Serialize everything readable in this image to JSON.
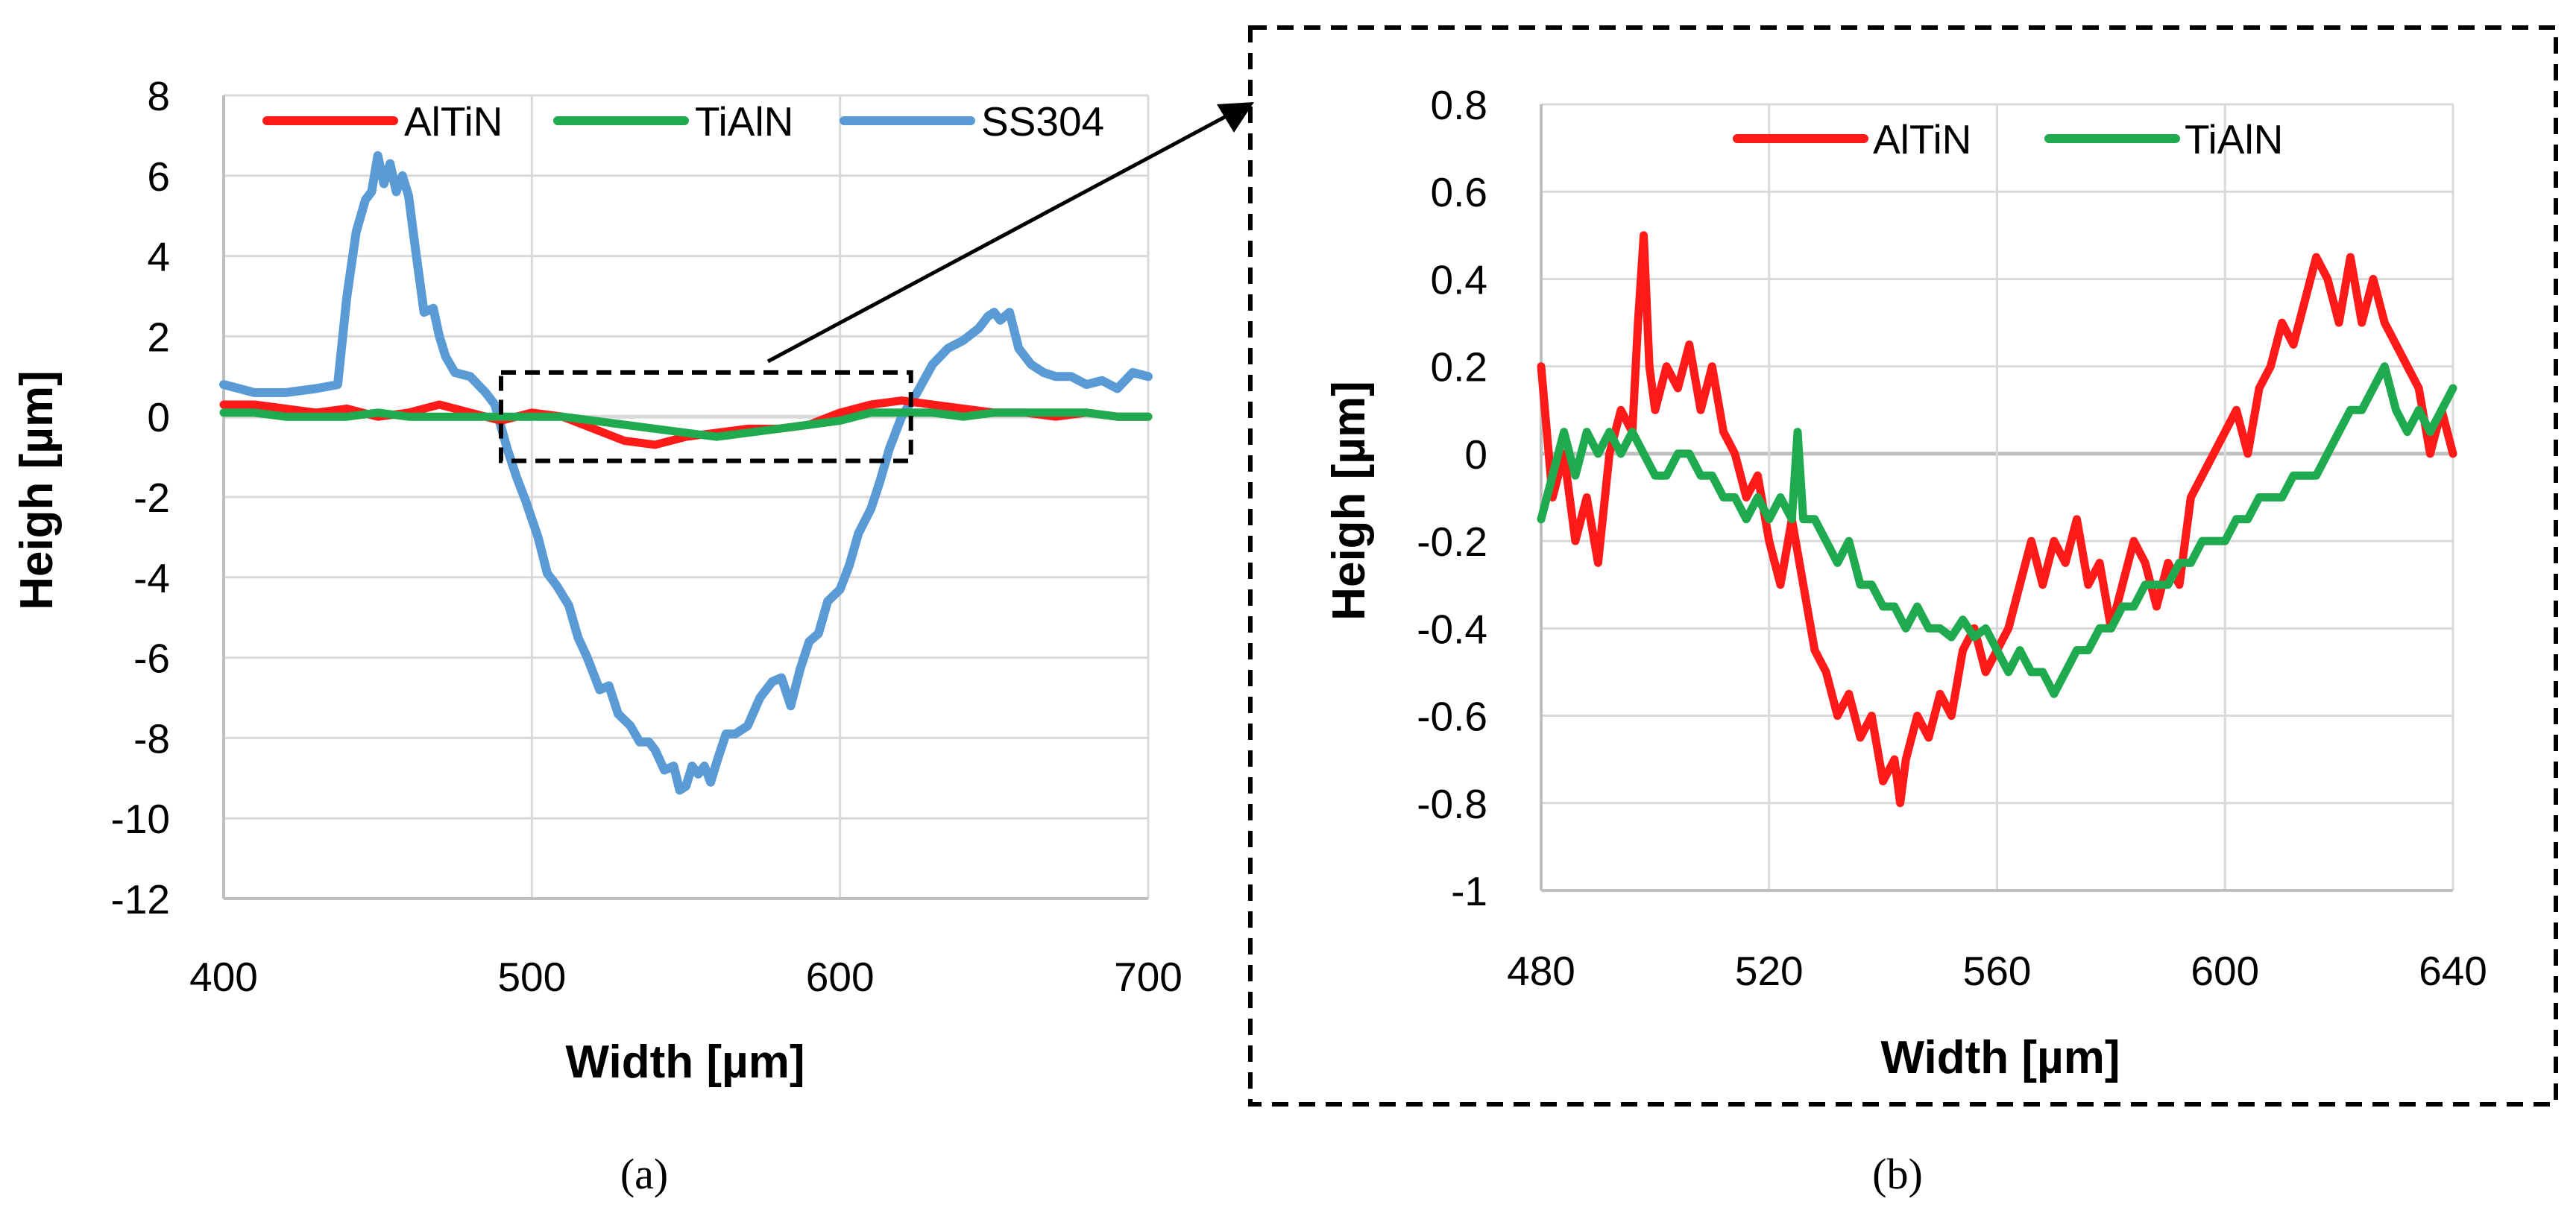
{
  "colors": {
    "AlTiN": "#ff1a1a",
    "TiAlN": "#1faa50",
    "SS304": "#5b9bd5",
    "grid": "#d9d9d9",
    "zero_line": "#bfbfbf",
    "frame": "#000000",
    "background": "#ffffff"
  },
  "chart_data": [
    {
      "id": "a",
      "caption": "(a)",
      "type": "line",
      "title": "",
      "xlabel": "Width [µm]",
      "ylabel": "Heigh [µm]",
      "xlim": [
        400,
        700
      ],
      "ylim": [
        -12,
        8
      ],
      "xticks": [
        400,
        500,
        600,
        700
      ],
      "yticks": [
        -12,
        -10,
        -8,
        -6,
        -4,
        -2,
        0,
        2,
        4,
        6,
        8
      ],
      "ytick_labels": [
        "-12",
        "-10",
        "-8",
        "-6",
        "-4",
        "-2",
        "0",
        "2",
        "4",
        "6",
        "8"
      ],
      "legend": {
        "placement": "top",
        "entries": [
          "AlTiN",
          "TiAlN",
          "SS304"
        ]
      },
      "zoom_box": {
        "x": [
          490,
          623
        ],
        "y": [
          -1.1,
          1.1
        ]
      },
      "series": [
        {
          "name": "SS304",
          "x": [
            400,
            410,
            420,
            430,
            437,
            440,
            443,
            446,
            448,
            450,
            452,
            454,
            456,
            458,
            460,
            462,
            465,
            468,
            470,
            472,
            475,
            480,
            485,
            488,
            492,
            495,
            498,
            502,
            505,
            508,
            512,
            515,
            518,
            522,
            525,
            528,
            532,
            535,
            538,
            540,
            543,
            546,
            548,
            550,
            552,
            554,
            556,
            558,
            560,
            563,
            566,
            570,
            574,
            578,
            581,
            584,
            587,
            590,
            593,
            596,
            600,
            603,
            606,
            610,
            613,
            616,
            620,
            625,
            630,
            635,
            640,
            645,
            648,
            650,
            652,
            655,
            658,
            662,
            666,
            670,
            675,
            680,
            685,
            690,
            695,
            700
          ],
          "values": [
            0.8,
            0.6,
            0.6,
            0.7,
            0.8,
            3.0,
            4.6,
            5.4,
            5.6,
            6.5,
            5.8,
            6.3,
            5.6,
            6.0,
            5.5,
            4.3,
            2.6,
            2.7,
            2.0,
            1.5,
            1.1,
            1.0,
            0.6,
            0.3,
            -0.8,
            -1.5,
            -2.1,
            -3.0,
            -3.9,
            -4.2,
            -4.7,
            -5.5,
            -6.0,
            -6.8,
            -6.7,
            -7.4,
            -7.7,
            -8.1,
            -8.1,
            -8.3,
            -8.8,
            -8.7,
            -9.3,
            -9.2,
            -8.7,
            -8.9,
            -8.7,
            -9.1,
            -8.6,
            -7.9,
            -7.9,
            -7.7,
            -7.0,
            -6.6,
            -6.5,
            -7.2,
            -6.3,
            -5.6,
            -5.4,
            -4.6,
            -4.3,
            -3.7,
            -2.9,
            -2.3,
            -1.6,
            -0.8,
            0.0,
            0.6,
            1.3,
            1.7,
            1.9,
            2.2,
            2.5,
            2.6,
            2.4,
            2.6,
            1.7,
            1.3,
            1.1,
            1.0,
            1.0,
            0.8,
            0.9,
            0.7,
            1.1,
            1.0
          ]
        },
        {
          "name": "AlTiN",
          "x": [
            400,
            410,
            420,
            430,
            440,
            450,
            460,
            470,
            480,
            490,
            500,
            510,
            520,
            530,
            540,
            550,
            560,
            570,
            580,
            590,
            600,
            610,
            620,
            630,
            640,
            650,
            660,
            670,
            680,
            690,
            700
          ],
          "values": [
            0.3,
            0.3,
            0.2,
            0.1,
            0.2,
            0.0,
            0.1,
            0.3,
            0.1,
            -0.1,
            0.1,
            0.0,
            -0.3,
            -0.6,
            -0.7,
            -0.5,
            -0.4,
            -0.3,
            -0.3,
            -0.2,
            0.1,
            0.3,
            0.4,
            0.3,
            0.2,
            0.1,
            0.1,
            0.0,
            0.1,
            0.0,
            0.0
          ]
        },
        {
          "name": "TiAlN",
          "x": [
            400,
            410,
            420,
            430,
            440,
            450,
            460,
            470,
            480,
            490,
            500,
            510,
            520,
            530,
            540,
            550,
            560,
            570,
            580,
            590,
            600,
            610,
            620,
            630,
            640,
            650,
            660,
            670,
            680,
            690,
            700
          ],
          "values": [
            0.1,
            0.1,
            0.0,
            0.0,
            0.0,
            0.1,
            0.0,
            0.0,
            0.0,
            0.0,
            0.0,
            0.0,
            -0.1,
            -0.2,
            -0.3,
            -0.4,
            -0.5,
            -0.4,
            -0.3,
            -0.2,
            -0.1,
            0.1,
            0.1,
            0.1,
            0.0,
            0.1,
            0.1,
            0.1,
            0.1,
            0.0,
            0.0
          ]
        }
      ]
    },
    {
      "id": "b",
      "caption": "(b)",
      "type": "line",
      "title": "",
      "xlabel": "Width [µm]",
      "ylabel": "Heigh [µm]",
      "xlim": [
        480,
        640
      ],
      "ylim": [
        -1,
        0.8
      ],
      "xticks": [
        480,
        520,
        560,
        600,
        640
      ],
      "yticks": [
        -1,
        -0.8,
        -0.6,
        -0.4,
        -0.2,
        0,
        0.2,
        0.4,
        0.6,
        0.8
      ],
      "ytick_labels": [
        "-1",
        "-0.8",
        "-0.6",
        "-0.4",
        "-0.2",
        "0",
        "0.2",
        "0.4",
        "0.6",
        "0.8"
      ],
      "legend": {
        "placement": "top",
        "entries": [
          "AlTiN",
          "TiAlN"
        ]
      },
      "series": [
        {
          "name": "AlTiN",
          "x": [
            480,
            482,
            484,
            486,
            488,
            490,
            492,
            494,
            496,
            497,
            498,
            499,
            500,
            502,
            504,
            506,
            508,
            510,
            512,
            514,
            516,
            518,
            520,
            522,
            524,
            526,
            528,
            530,
            532,
            534,
            536,
            538,
            540,
            542,
            543,
            544,
            546,
            548,
            550,
            552,
            554,
            556,
            558,
            560,
            562,
            564,
            566,
            568,
            570,
            572,
            574,
            576,
            578,
            580,
            582,
            584,
            586,
            588,
            590,
            592,
            594,
            596,
            598,
            600,
            602,
            604,
            606,
            608,
            610,
            612,
            614,
            616,
            618,
            620,
            622,
            624,
            626,
            628,
            630,
            632,
            634,
            636,
            638,
            640
          ],
          "values": [
            0.2,
            -0.1,
            0.0,
            -0.2,
            -0.1,
            -0.25,
            0.0,
            0.1,
            0.05,
            0.3,
            0.5,
            0.2,
            0.1,
            0.2,
            0.15,
            0.25,
            0.1,
            0.2,
            0.05,
            0.0,
            -0.1,
            -0.05,
            -0.2,
            -0.3,
            -0.15,
            -0.3,
            -0.45,
            -0.5,
            -0.6,
            -0.55,
            -0.65,
            -0.6,
            -0.75,
            -0.7,
            -0.8,
            -0.7,
            -0.6,
            -0.65,
            -0.55,
            -0.6,
            -0.45,
            -0.4,
            -0.5,
            -0.45,
            -0.4,
            -0.3,
            -0.2,
            -0.3,
            -0.2,
            -0.25,
            -0.15,
            -0.3,
            -0.25,
            -0.4,
            -0.3,
            -0.2,
            -0.25,
            -0.35,
            -0.25,
            -0.3,
            -0.1,
            -0.05,
            0.0,
            0.05,
            0.1,
            0.0,
            0.15,
            0.2,
            0.3,
            0.25,
            0.35,
            0.45,
            0.4,
            0.3,
            0.45,
            0.3,
            0.4,
            0.3,
            0.25,
            0.2,
            0.15,
            0.0,
            0.1,
            0.0
          ]
        },
        {
          "name": "TiAlN",
          "x": [
            480,
            482,
            484,
            486,
            488,
            490,
            492,
            494,
            496,
            498,
            500,
            502,
            504,
            506,
            508,
            510,
            512,
            514,
            516,
            518,
            520,
            522,
            524,
            525,
            526,
            528,
            530,
            532,
            534,
            536,
            538,
            540,
            542,
            544,
            546,
            548,
            550,
            552,
            554,
            556,
            558,
            560,
            562,
            564,
            566,
            568,
            570,
            572,
            574,
            576,
            578,
            580,
            582,
            584,
            586,
            588,
            590,
            592,
            594,
            596,
            598,
            600,
            602,
            604,
            606,
            608,
            610,
            612,
            614,
            616,
            618,
            620,
            622,
            624,
            626,
            628,
            630,
            632,
            634,
            636,
            638,
            640
          ],
          "values": [
            -0.15,
            -0.05,
            0.05,
            -0.05,
            0.05,
            0.0,
            0.05,
            0.0,
            0.05,
            0.0,
            -0.05,
            -0.05,
            0.0,
            0.0,
            -0.05,
            -0.05,
            -0.1,
            -0.1,
            -0.15,
            -0.1,
            -0.15,
            -0.1,
            -0.15,
            0.05,
            -0.15,
            -0.15,
            -0.2,
            -0.25,
            -0.2,
            -0.3,
            -0.3,
            -0.35,
            -0.35,
            -0.4,
            -0.35,
            -0.4,
            -0.4,
            -0.42,
            -0.38,
            -0.42,
            -0.4,
            -0.45,
            -0.5,
            -0.45,
            -0.5,
            -0.5,
            -0.55,
            -0.5,
            -0.45,
            -0.45,
            -0.4,
            -0.4,
            -0.35,
            -0.35,
            -0.3,
            -0.3,
            -0.3,
            -0.25,
            -0.25,
            -0.2,
            -0.2,
            -0.2,
            -0.15,
            -0.15,
            -0.1,
            -0.1,
            -0.1,
            -0.05,
            -0.05,
            -0.05,
            0.0,
            0.05,
            0.1,
            0.1,
            0.15,
            0.2,
            0.1,
            0.05,
            0.1,
            0.05,
            0.1,
            0.15
          ]
        }
      ]
    }
  ]
}
